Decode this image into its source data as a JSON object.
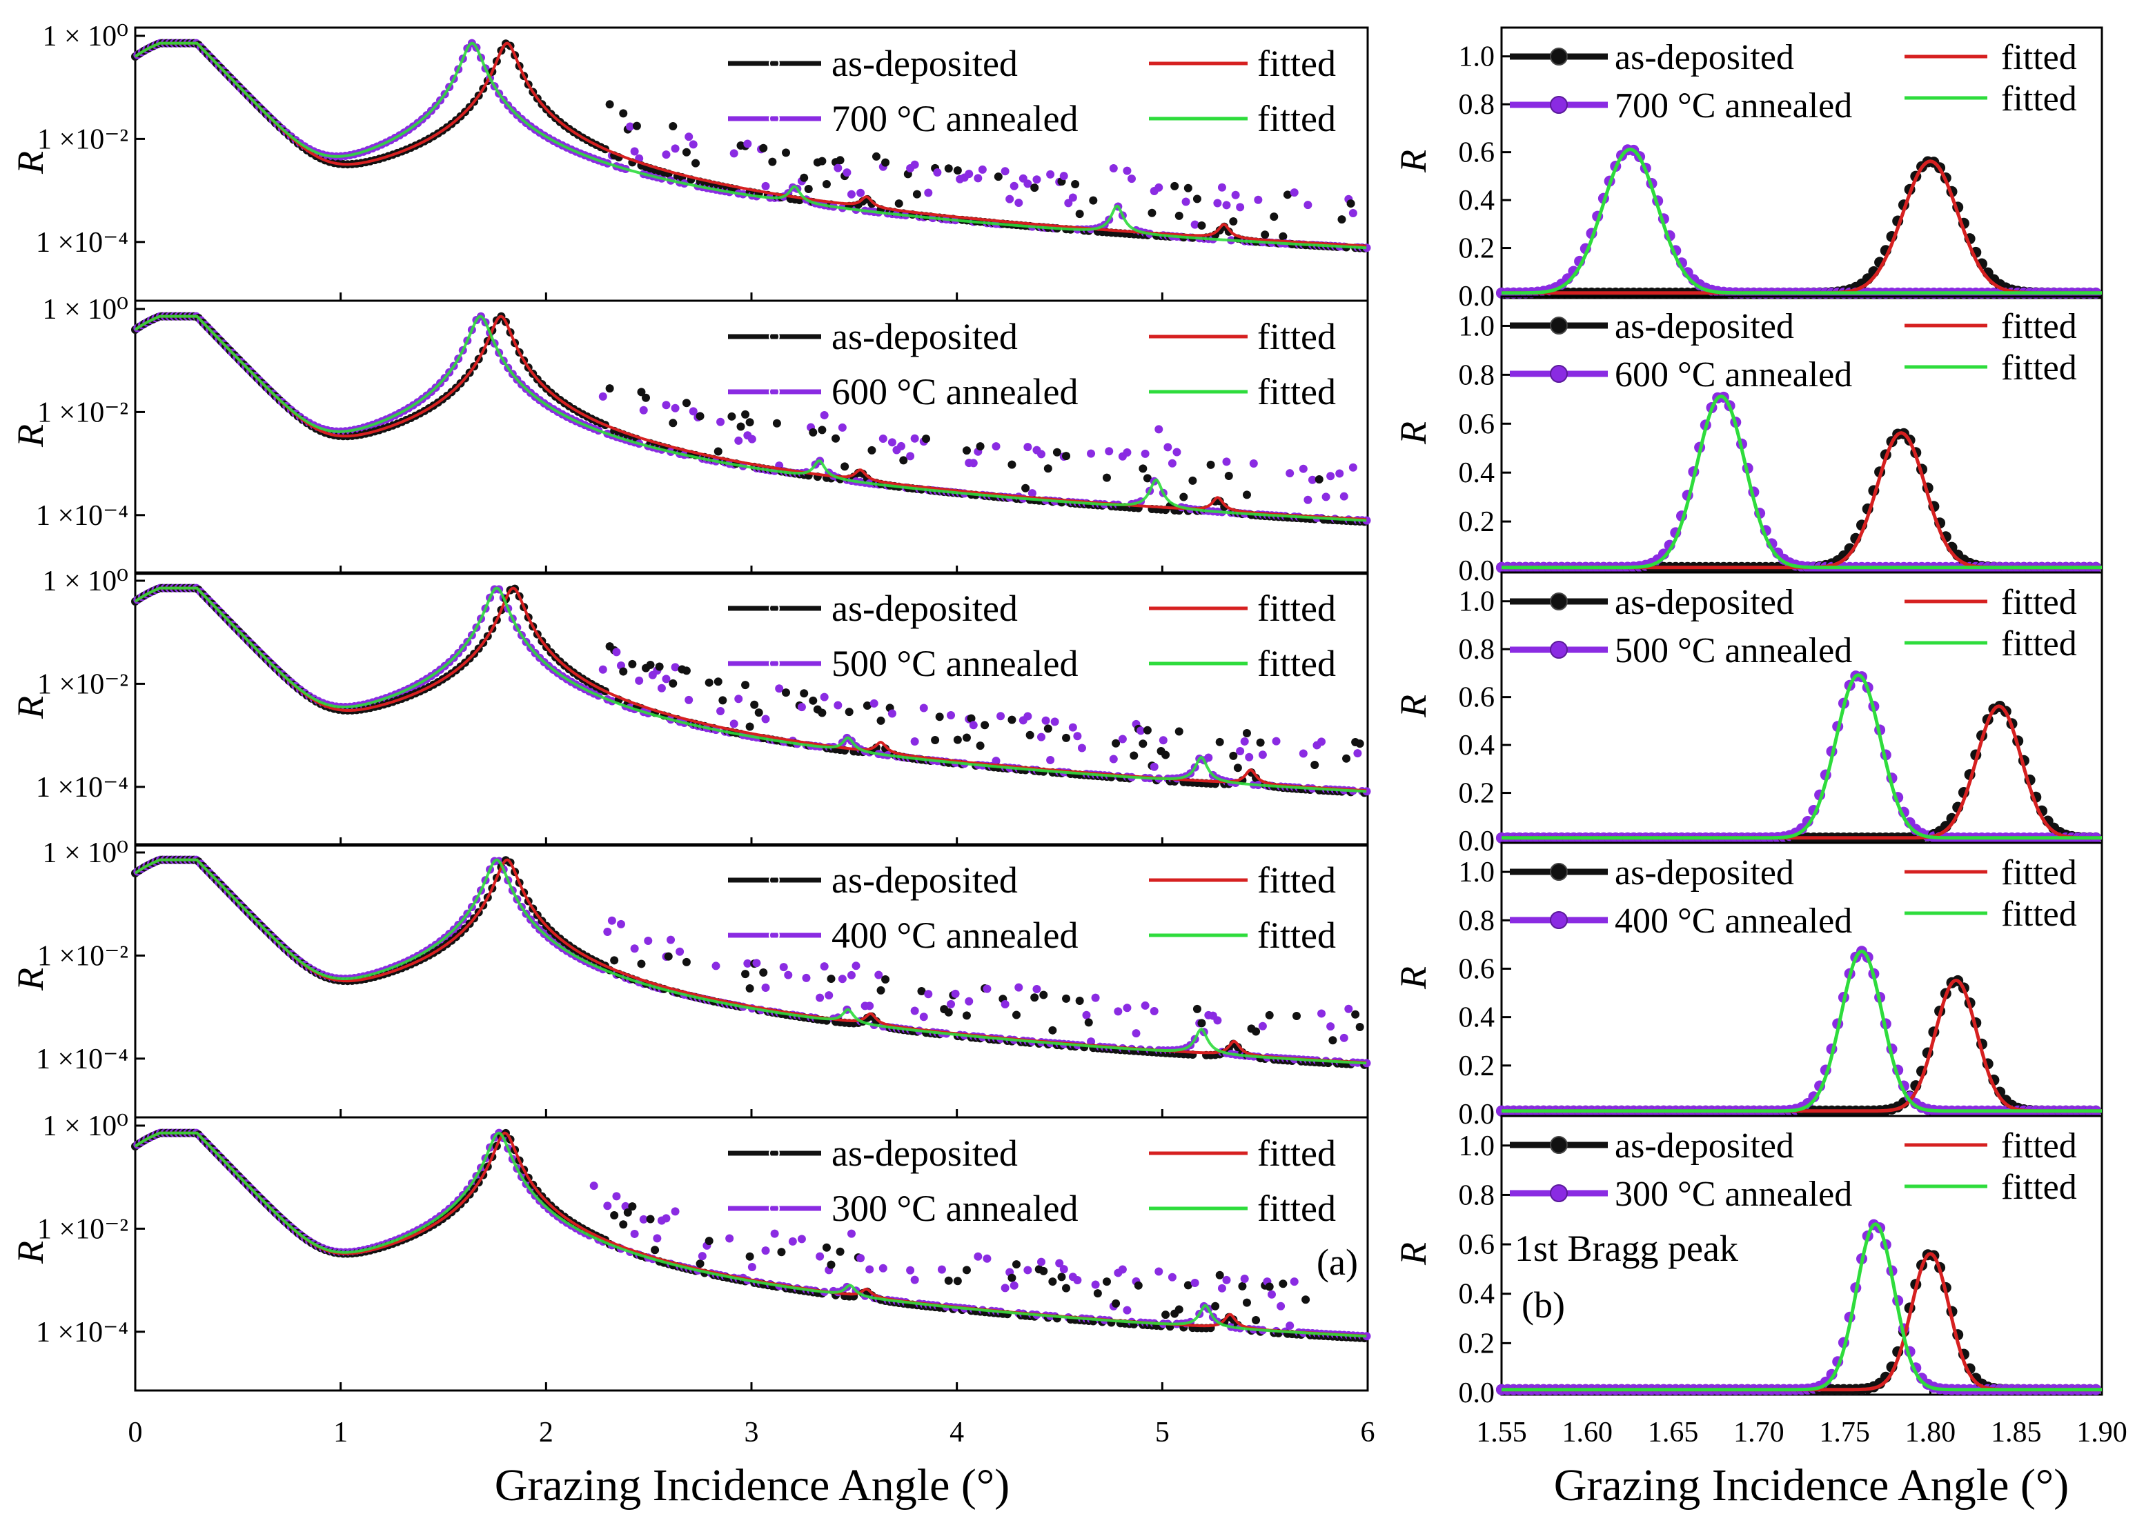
{
  "figure": {
    "colors": {
      "as_deposited": "#111111",
      "annealed": "#8a2be2",
      "fit_as_deposited": "#d62020",
      "fit_annealed": "#2edc3c",
      "fit_blend": "#3a8fa8"
    },
    "xlabel_a": "Grazing Incidence Angle (°)",
    "xlabel_b": "Grazing Incidence Angle (°)",
    "panel_a_label": "(a)",
    "panel_b_label": "(b)",
    "bragg_label": "1st Bragg peak"
  },
  "chart_data": [
    {
      "type": "line",
      "id": "panel-a",
      "title": "",
      "xlabel": "Grazing Incidence Angle (°)",
      "ylabel": "R",
      "y_scale": "log",
      "xlim": [
        0,
        6
      ],
      "ylim_log10": [
        -5.1,
        0.12
      ],
      "x_ticks": [
        "0",
        "1",
        "2",
        "3",
        "4",
        "5",
        "6"
      ],
      "y_ticks": [
        {
          "value": 1,
          "label": "1 × 10⁰"
        },
        {
          "value": 0.01,
          "label": "1 ×10⁻²"
        },
        {
          "value": 0.0001,
          "label": "1 ×10⁻⁴"
        }
      ],
      "legend": {
        "placement": "top-right",
        "fit_label": "fitted",
        "as_label": "as-deposited"
      },
      "subpanels": [
        {
          "temperature": "700 °C annealed",
          "as_peaks": [
            1.81,
            3.56,
            5.3
          ],
          "ann_peaks": [
            1.64,
            3.21,
            4.78
          ],
          "as_heights": [
            0.72,
            0.00028,
            0.0001
          ],
          "ann_heights": [
            0.72,
            0.0006,
            0.00035
          ]
        },
        {
          "temperature": "600 °C annealed",
          "as_peaks": [
            1.78,
            3.53,
            5.27
          ],
          "ann_peaks": [
            1.68,
            3.33,
            4.97
          ],
          "as_heights": [
            0.72,
            0.00028,
            0.0001
          ],
          "ann_heights": [
            0.72,
            0.0006,
            0.00035
          ]
        },
        {
          "temperature": "500 °C annealed",
          "as_peaks": [
            1.84,
            3.63,
            5.43
          ],
          "ann_peaks": [
            1.76,
            3.47,
            5.19
          ],
          "as_heights": [
            0.72,
            0.00028,
            0.0001
          ],
          "ann_heights": [
            0.72,
            0.0004,
            0.00025
          ]
        },
        {
          "temperature": "400 °C annealed",
          "as_peaks": [
            1.81,
            3.58,
            5.35
          ],
          "ann_peaks": [
            1.76,
            3.47,
            5.19
          ],
          "as_heights": [
            0.72,
            0.00028,
            0.0001
          ],
          "ann_heights": [
            0.72,
            0.0004,
            0.00025
          ]
        },
        {
          "temperature": "300 °C annealed",
          "as_peaks": [
            1.8,
            3.56,
            5.33
          ],
          "ann_peaks": [
            1.77,
            3.48,
            5.21
          ],
          "as_heights": [
            0.72,
            0.0002,
            0.0001
          ],
          "ann_heights": [
            0.72,
            0.0003,
            0.0002
          ]
        }
      ]
    },
    {
      "type": "line",
      "id": "panel-b",
      "title": "",
      "xlabel": "Grazing Incidence Angle (°)",
      "ylabel": "R",
      "y_scale": "linear",
      "xlim": [
        1.55,
        1.9
      ],
      "ylim": [
        0,
        1.1
      ],
      "x_ticks": [
        "1.55",
        "1.60",
        "1.65",
        "1.70",
        "1.75",
        "1.80",
        "1.85",
        "1.90"
      ],
      "y_ticks": [
        "0.0",
        "0.2",
        "0.4",
        "0.6",
        "0.8",
        "1.0"
      ],
      "legend": {
        "placement": "top",
        "fit_label": "fitted",
        "as_label": "as-deposited"
      },
      "subpanels": [
        {
          "temperature": "700 °C annealed",
          "as_peak": 1.8,
          "as_height": 0.55,
          "ann_peak": 1.625,
          "ann_height": 0.6,
          "sigma": 0.016
        },
        {
          "temperature": "600 °C annealed",
          "as_peak": 1.783,
          "as_height": 0.55,
          "ann_peak": 1.678,
          "ann_height": 0.7,
          "sigma": 0.014
        },
        {
          "temperature": "500 °C annealed",
          "as_peak": 1.84,
          "as_height": 0.55,
          "ann_peak": 1.758,
          "ann_height": 0.68,
          "sigma": 0.013
        },
        {
          "temperature": "400 °C annealed",
          "as_peak": 1.815,
          "as_height": 0.54,
          "ann_peak": 1.76,
          "ann_height": 0.66,
          "sigma": 0.012
        },
        {
          "temperature": "300 °C annealed",
          "as_peak": 1.8,
          "as_height": 0.55,
          "ann_peak": 1.768,
          "ann_height": 0.67,
          "sigma": 0.011
        }
      ]
    }
  ]
}
